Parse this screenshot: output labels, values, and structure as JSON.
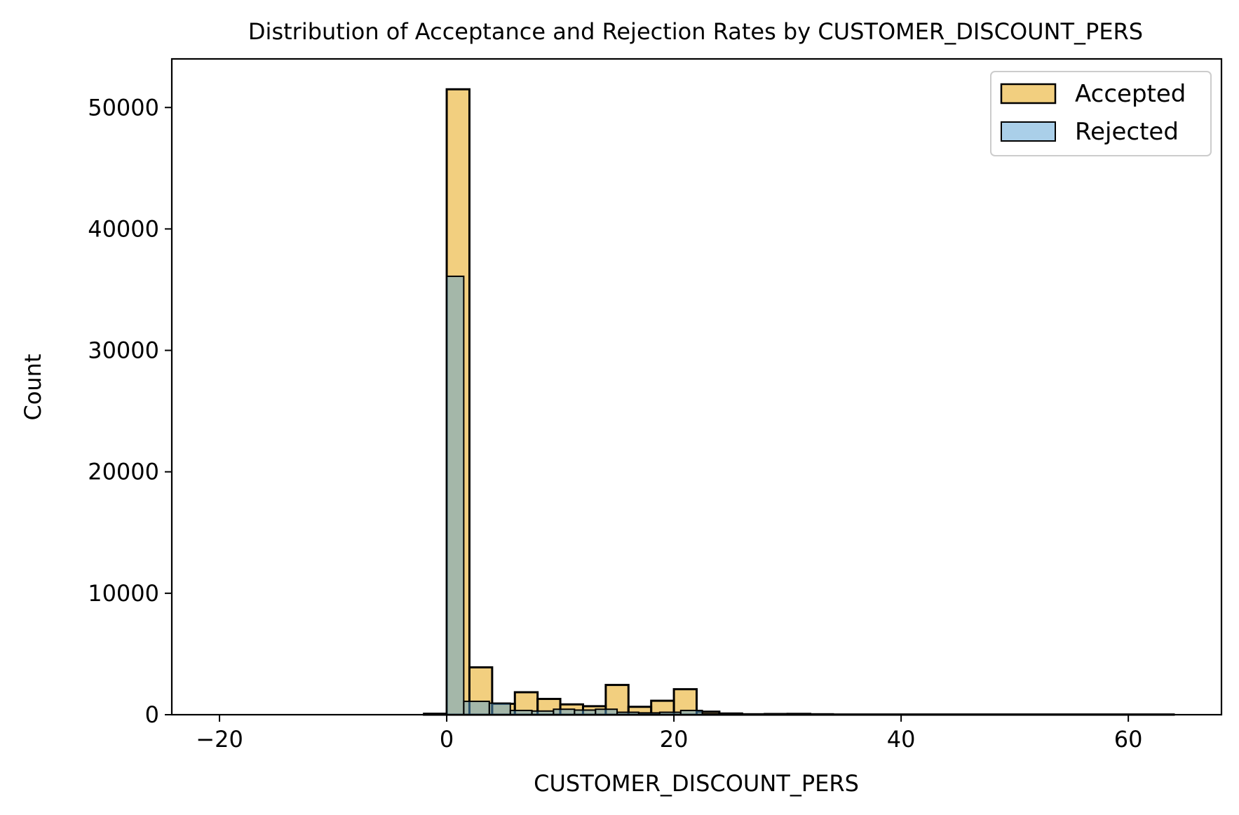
{
  "chart_data": {
    "type": "bar",
    "subtype": "overlaid-histogram",
    "title": "Distribution of Acceptance and Rejection Rates by CUSTOMER_DISCOUNT_PERS",
    "xlabel": "CUSTOMER_DISCOUNT_PERS",
    "ylabel": "Count",
    "xlim": [
      -24.2,
      68.2
    ],
    "ylim": [
      0,
      54000
    ],
    "x_ticks": [
      {
        "value": -20,
        "label": "−20"
      },
      {
        "value": 0,
        "label": "0"
      },
      {
        "value": 20,
        "label": "20"
      },
      {
        "value": 40,
        "label": "40"
      },
      {
        "value": 60,
        "label": "60"
      }
    ],
    "y_ticks": [
      {
        "value": 0,
        "label": "0"
      },
      {
        "value": 10000,
        "label": "10000"
      },
      {
        "value": 20000,
        "label": "20000"
      },
      {
        "value": 30000,
        "label": "30000"
      },
      {
        "value": 40000,
        "label": "40000"
      },
      {
        "value": 50000,
        "label": "50000"
      }
    ],
    "grid": false,
    "legend": {
      "position": "top-right",
      "entries": [
        "Accepted",
        "Rejected"
      ]
    },
    "series": [
      {
        "name": "Accepted",
        "color": "#e69f00",
        "bins": [
          {
            "x0": -2.0,
            "x1": 0.0,
            "value": 80
          },
          {
            "x0": 0.0,
            "x1": 2.0,
            "value": 51500
          },
          {
            "x0": 2.0,
            "x1": 4.0,
            "value": 3900
          },
          {
            "x0": 4.0,
            "x1": 6.0,
            "value": 900
          },
          {
            "x0": 6.0,
            "x1": 8.0,
            "value": 1850
          },
          {
            "x0": 8.0,
            "x1": 10.0,
            "value": 1300
          },
          {
            "x0": 10.0,
            "x1": 12.0,
            "value": 850
          },
          {
            "x0": 12.0,
            "x1": 14.0,
            "value": 700
          },
          {
            "x0": 14.0,
            "x1": 16.0,
            "value": 2450
          },
          {
            "x0": 16.0,
            "x1": 18.0,
            "value": 650
          },
          {
            "x0": 18.0,
            "x1": 20.0,
            "value": 1150
          },
          {
            "x0": 20.0,
            "x1": 22.0,
            "value": 2100
          },
          {
            "x0": 22.0,
            "x1": 24.0,
            "value": 250
          },
          {
            "x0": 24.0,
            "x1": 26.0,
            "value": 100
          },
          {
            "x0": 26.0,
            "x1": 28.0,
            "value": 40
          },
          {
            "x0": 28.0,
            "x1": 30.0,
            "value": 60
          },
          {
            "x0": 30.0,
            "x1": 32.0,
            "value": 70
          },
          {
            "x0": 32.0,
            "x1": 34.0,
            "value": 40
          },
          {
            "x0": 34.0,
            "x1": 64.0,
            "value": 20
          }
        ]
      },
      {
        "name": "Rejected",
        "color": "#56a0d3",
        "bins": [
          {
            "x0": 0.0,
            "x1": 1.5,
            "value": 36100
          },
          {
            "x0": 1.5,
            "x1": 3.75,
            "value": 1100
          },
          {
            "x0": 3.75,
            "x1": 5.6,
            "value": 950
          },
          {
            "x0": 5.6,
            "x1": 7.5,
            "value": 350
          },
          {
            "x0": 7.5,
            "x1": 9.4,
            "value": 300
          },
          {
            "x0": 9.4,
            "x1": 11.25,
            "value": 450
          },
          {
            "x0": 11.25,
            "x1": 13.1,
            "value": 380
          },
          {
            "x0": 13.1,
            "x1": 15.0,
            "value": 450
          },
          {
            "x0": 15.0,
            "x1": 16.9,
            "value": 200
          },
          {
            "x0": 16.9,
            "x1": 18.75,
            "value": 150
          },
          {
            "x0": 18.75,
            "x1": 20.6,
            "value": 200
          },
          {
            "x0": 20.6,
            "x1": 22.5,
            "value": 350
          },
          {
            "x0": 22.5,
            "x1": 24.4,
            "value": 80
          },
          {
            "x0": 24.4,
            "x1": 64.0,
            "value": 20
          }
        ]
      }
    ]
  }
}
